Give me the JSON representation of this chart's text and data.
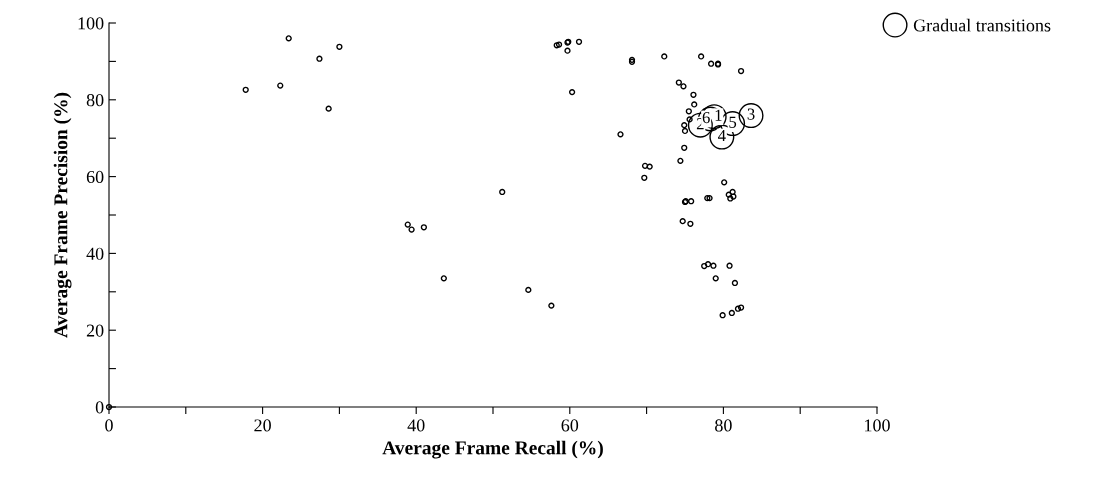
{
  "chart_data": {
    "type": "scatter",
    "xlabel": "Average Frame Recall (%)",
    "ylabel": "Average Frame Precision (%)",
    "xlim": [
      0,
      100
    ],
    "ylim": [
      0,
      100
    ],
    "xticks": [
      0,
      {
        "value": 10,
        "label": null
      },
      20,
      {
        "value": 30,
        "label": null
      },
      40,
      {
        "value": 50,
        "label": null
      },
      60,
      {
        "value": 70,
        "label": null
      },
      80,
      {
        "value": 90,
        "label": null
      },
      100
    ],
    "yticks": [
      0,
      {
        "value": 10,
        "label": null
      },
      20,
      {
        "value": 30,
        "label": null
      },
      40,
      {
        "value": 50,
        "label": null
      },
      60,
      {
        "value": 70,
        "label": null
      },
      80,
      {
        "value": 90,
        "label": null
      },
      100
    ],
    "grid": false,
    "legend": "top right",
    "marker": "circle",
    "series": [
      {
        "color": "#000000",
        "x": [
          0,
          17.8,
          22.3,
          23.4,
          27.4,
          30.0,
          28.6,
          38.9,
          39.4,
          41.0,
          43.6,
          58.3,
          58.6,
          59.7,
          59.8,
          59.7,
          61.2,
          68.1,
          68.1,
          72.3,
          60.3,
          66.6,
          69.8,
          70.4,
          69.7,
          51.2,
          54.6,
          57.6,
          77.1,
          78.4,
          79.3,
          79.3,
          82.3,
          74.2,
          74.8,
          76.1,
          76.2,
          75.5,
          75.6,
          74.9,
          75.0,
          74.9,
          74.4,
          80.1,
          81.2,
          80.7,
          80.9,
          81.3,
          77.9,
          78.2,
          75.0,
          75.1,
          75.8,
          74.7,
          75.7,
          77.5,
          78.0,
          78.7,
          80.8,
          79.0,
          81.5,
          79.9,
          81.1,
          81.9,
          82.3
        ],
        "values": [
          0,
          82.6,
          83.7,
          96.0,
          90.7,
          93.8,
          77.7,
          47.5,
          46.2,
          46.8,
          33.5,
          94.2,
          94.4,
          94.9,
          95.1,
          92.8,
          95.1,
          90.4,
          89.9,
          91.3,
          82.0,
          71.0,
          62.8,
          62.6,
          59.7,
          56.0,
          30.5,
          26.4,
          91.3,
          89.4,
          89.4,
          89.2,
          87.5,
          84.5,
          83.5,
          81.3,
          78.8,
          77.0,
          74.9,
          73.4,
          71.9,
          67.5,
          64.1,
          58.5,
          56.0,
          55.3,
          54.3,
          54.8,
          54.4,
          54.4,
          53.4,
          53.6,
          53.6,
          48.4,
          47.7,
          36.7,
          37.2,
          36.8,
          36.8,
          33.5,
          32.3,
          23.9,
          24.5,
          25.6,
          25.9
        ]
      },
      {
        "name": "Gradual transitions",
        "color": "#000000",
        "x": [
          78.8,
          77.0,
          83.6,
          79.8,
          81.2,
          78.3
        ],
        "values": [
          75.6,
          73.4,
          75.9,
          70.3,
          73.8,
          75.0
        ]
      }
    ],
    "annotations": [
      {
        "text": "1",
        "x": 78.8,
        "y": 75.6
      },
      {
        "text": "2",
        "x": 77.0,
        "y": 73.4
      },
      {
        "text": "3",
        "x": 83.6,
        "y": 75.9
      },
      {
        "text": "4",
        "x": 79.8,
        "y": 70.3
      },
      {
        "text": "5",
        "x": 81.2,
        "y": 73.8
      },
      {
        "text": "6",
        "x": 78.3,
        "y": 75.0
      }
    ]
  }
}
